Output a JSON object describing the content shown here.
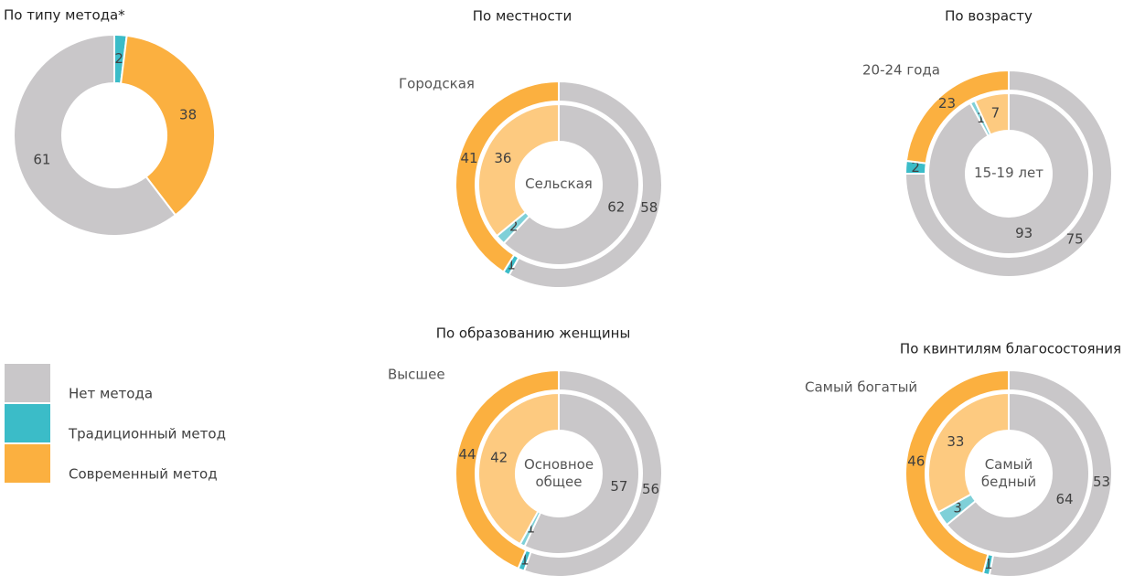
{
  "legend": {
    "labels": [
      "Нет метода",
      "Традиционный метод",
      "Современный метод"
    ],
    "colors": [
      "#c9c7c9",
      "#3bbcc8",
      "#fbb040"
    ]
  },
  "chart_data": [
    {
      "type": "donut",
      "title": "По типу метода*",
      "categories": [
        "Традиционный метод",
        "Современный метод",
        "Нет метода"
      ],
      "series": [
        {
          "values": [
            2,
            38,
            61
          ],
          "colors": [
            "#3bbcc8",
            "#fbb040",
            "#c9c7c9"
          ]
        }
      ]
    },
    {
      "type": "donut",
      "title": "По местности",
      "categories": [
        "Нет метода",
        "Традиционный метод",
        "Современный метод"
      ],
      "series": [
        {
          "name": "Городская",
          "values": [
            58,
            1,
            41
          ],
          "colors": [
            "#c9c7c9",
            "#3bbcc8",
            "#fbb040"
          ]
        },
        {
          "name": "Сельская",
          "values": [
            62,
            2,
            36
          ],
          "colors": [
            "#c9c7c9",
            "#7fd0d8",
            "#fdca80"
          ]
        }
      ]
    },
    {
      "type": "donut",
      "title": "По возрасту",
      "categories": [
        "Нет метода",
        "Традиционный метод",
        "Современный метод"
      ],
      "series": [
        {
          "name": "20-24 года",
          "values": [
            75,
            2,
            23
          ],
          "colors": [
            "#c9c7c9",
            "#3bbcc8",
            "#fbb040"
          ]
        },
        {
          "name": "15-19 лет",
          "values": [
            93,
            1,
            7
          ],
          "colors": [
            "#c9c7c9",
            "#7fd0d8",
            "#fdca80"
          ]
        }
      ]
    },
    {
      "type": "donut",
      "title": "По образованию женщины",
      "categories": [
        "Нет метода",
        "Традиционный метод",
        "Современный метод"
      ],
      "series": [
        {
          "name": "Высшее",
          "values": [
            56,
            1,
            44
          ],
          "colors": [
            "#c9c7c9",
            "#3bbcc8",
            "#fbb040"
          ]
        },
        {
          "name": "Основное общее",
          "values": [
            57,
            1,
            42
          ],
          "colors": [
            "#c9c7c9",
            "#7fd0d8",
            "#fdca80"
          ]
        }
      ]
    },
    {
      "type": "donut",
      "title": "По квинтилям благосостояния",
      "categories": [
        "Нет метода",
        "Традиционный метод",
        "Современный метод"
      ],
      "series": [
        {
          "name": "Самый богатый",
          "values": [
            53,
            1,
            46
          ],
          "colors": [
            "#c9c7c9",
            "#3bbcc8",
            "#fbb040"
          ]
        },
        {
          "name": "Самый бедный",
          "values": [
            64,
            3,
            33
          ],
          "colors": [
            "#c9c7c9",
            "#7fd0d8",
            "#fdca80"
          ]
        }
      ]
    }
  ]
}
